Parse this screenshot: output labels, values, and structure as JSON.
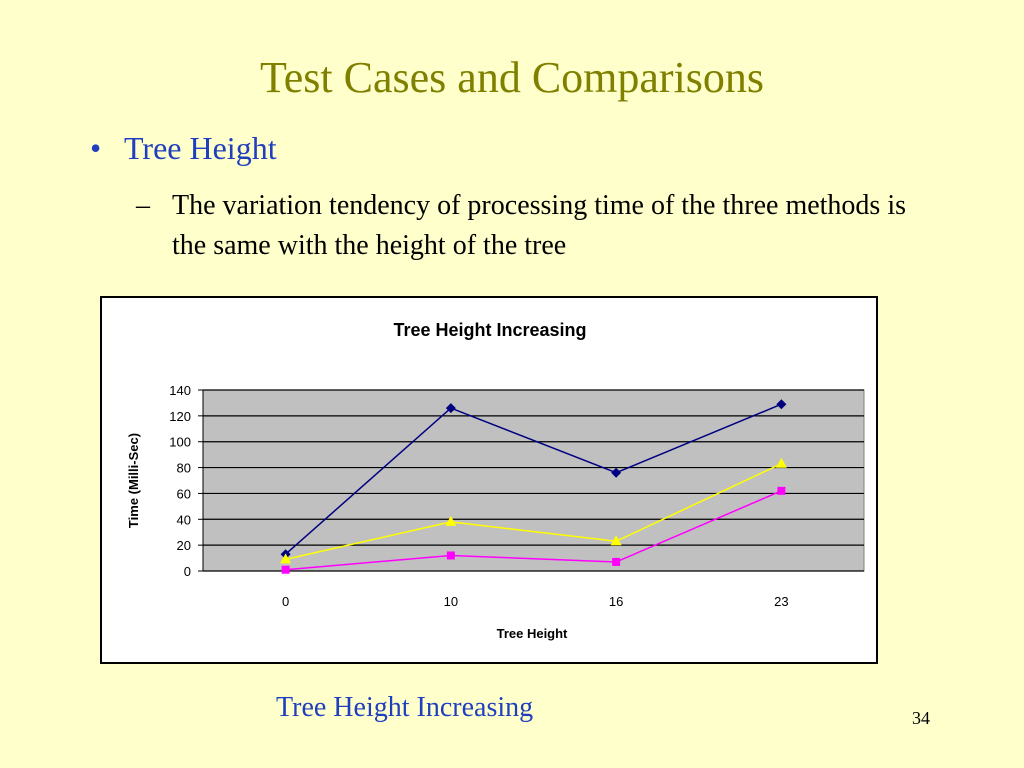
{
  "slide": {
    "title": "Test Cases and Comparisons",
    "bullet_marker": "•",
    "bullet": "Tree Height",
    "sub_marker": "–",
    "sub_bullet": "The variation tendency of processing time of the three methods is the same with the height of the tree",
    "caption": "Tree Height Increasing",
    "page_number": "34"
  },
  "chart_data": {
    "type": "line",
    "title": "Tree Height Increasing",
    "xlabel": "Tree Height",
    "ylabel": "Time (Milli-Sec)",
    "categories": [
      "0",
      "10",
      "16",
      "23"
    ],
    "ylim": [
      0,
      140
    ],
    "yticks": [
      0,
      20,
      40,
      60,
      80,
      100,
      120,
      140
    ],
    "grid": true,
    "plot_background": "#c0c0c0",
    "series": [
      {
        "values": [
          13,
          126,
          76,
          129
        ],
        "color": "#000080",
        "marker": "diamond"
      },
      {
        "values": [
          9,
          38,
          23,
          83
        ],
        "color": "#ffff00",
        "marker": "triangle"
      },
      {
        "values": [
          1,
          12,
          7,
          62
        ],
        "color": "#ff00ff",
        "marker": "square"
      }
    ]
  }
}
